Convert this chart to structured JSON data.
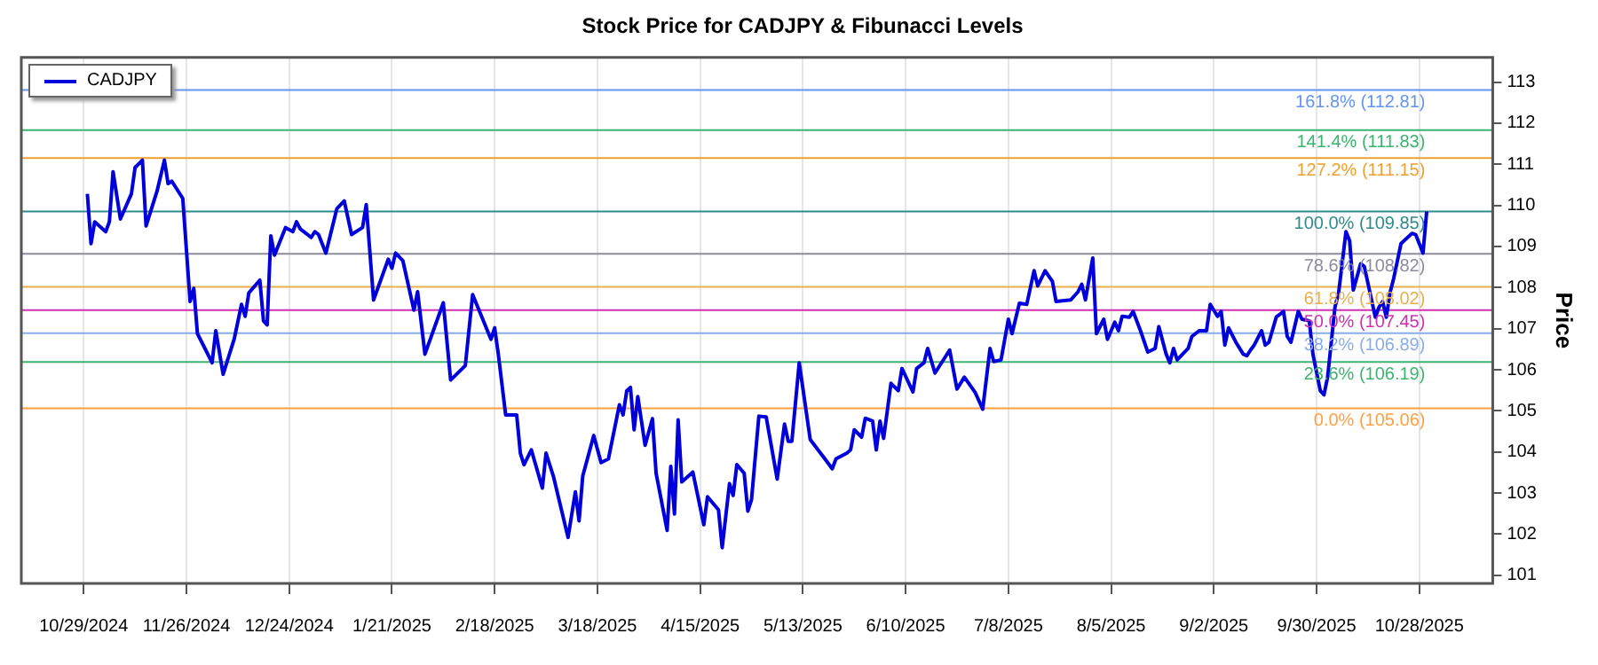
{
  "chart_data": {
    "type": "line",
    "title": "Stock Price for CADJPY & Fibunacci Levels",
    "ylabel": "Price",
    "x": [
      "2024-10-30",
      "2024-10-31",
      "2024-11-01",
      "2024-11-04",
      "2024-11-05",
      "2024-11-06",
      "2024-11-08",
      "2024-11-11",
      "2024-11-12",
      "2024-11-14",
      "2024-11-15",
      "2024-11-18",
      "2024-11-20",
      "2024-11-21",
      "2024-11-22",
      "2024-11-25",
      "2024-11-27",
      "2024-11-28",
      "2024-11-29",
      "2024-12-03",
      "2024-12-04",
      "2024-12-06",
      "2024-12-09",
      "2024-12-11",
      "2024-12-12",
      "2024-12-13",
      "2024-12-16",
      "2024-12-17",
      "2024-12-18",
      "2024-12-19",
      "2024-12-20",
      "2024-12-23",
      "2024-12-25",
      "2024-12-26",
      "2024-12-27",
      "2024-12-30",
      "2024-12-31",
      "2025-01-01",
      "2025-01-03",
      "2025-01-06",
      "2025-01-08",
      "2025-01-10",
      "2025-01-13",
      "2025-01-14",
      "2025-01-16",
      "2025-01-20",
      "2025-01-21",
      "2025-01-22",
      "2025-01-24",
      "2025-01-27",
      "2025-01-28",
      "2025-01-30",
      "2025-02-04",
      "2025-02-06",
      "2025-02-10",
      "2025-02-12",
      "2025-02-17",
      "2025-02-18",
      "2025-02-19",
      "2025-02-21",
      "2025-02-24",
      "2025-02-25",
      "2025-02-26",
      "2025-02-28",
      "2025-03-03",
      "2025-03-04",
      "2025-03-06",
      "2025-03-10",
      "2025-03-12",
      "2025-03-13",
      "2025-03-14",
      "2025-03-17",
      "2025-03-19",
      "2025-03-21",
      "2025-03-24",
      "2025-03-25",
      "2025-03-26",
      "2025-03-27",
      "2025-03-28",
      "2025-03-29",
      "2025-03-31",
      "2025-04-02",
      "2025-04-03",
      "2025-04-06",
      "2025-04-07",
      "2025-04-08",
      "2025-04-09",
      "2025-04-10",
      "2025-04-13",
      "2025-04-16",
      "2025-04-17",
      "2025-04-20",
      "2025-04-21",
      "2025-04-23",
      "2025-04-24",
      "2025-04-25",
      "2025-04-27",
      "2025-04-28",
      "2025-04-29",
      "2025-05-01",
      "2025-05-03",
      "2025-05-06",
      "2025-05-08",
      "2025-05-09",
      "2025-05-10",
      "2025-05-12",
      "2025-05-15",
      "2025-05-19",
      "2025-05-21",
      "2025-05-22",
      "2025-05-25",
      "2025-05-26",
      "2025-05-27",
      "2025-05-29",
      "2025-05-30",
      "2025-06-01",
      "2025-06-02",
      "2025-06-03",
      "2025-06-04",
      "2025-06-06",
      "2025-06-08",
      "2025-06-09",
      "2025-06-12",
      "2025-06-13",
      "2025-06-15",
      "2025-06-16",
      "2025-06-18",
      "2025-06-22",
      "2025-06-24",
      "2025-06-26",
      "2025-06-29",
      "2025-07-01",
      "2025-07-03",
      "2025-07-04",
      "2025-07-06",
      "2025-07-08",
      "2025-07-09",
      "2025-07-11",
      "2025-07-13",
      "2025-07-15",
      "2025-07-16",
      "2025-07-18",
      "2025-07-20",
      "2025-07-21",
      "2025-07-25",
      "2025-07-27",
      "2025-07-28",
      "2025-07-29",
      "2025-07-31",
      "2025-08-01",
      "2025-08-03",
      "2025-08-04",
      "2025-08-06",
      "2025-08-07",
      "2025-08-08",
      "2025-08-10",
      "2025-08-11",
      "2025-08-13",
      "2025-08-15",
      "2025-08-17",
      "2025-08-18",
      "2025-08-20",
      "2025-08-21",
      "2025-08-22",
      "2025-08-23",
      "2025-08-26",
      "2025-08-27",
      "2025-08-29",
      "2025-08-31",
      "2025-09-01",
      "2025-09-03",
      "2025-09-04",
      "2025-09-05",
      "2025-09-06",
      "2025-09-08",
      "2025-09-10",
      "2025-09-11",
      "2025-09-12",
      "2025-09-13",
      "2025-09-15",
      "2025-09-16",
      "2025-09-17",
      "2025-09-19",
      "2025-09-21",
      "2025-09-22",
      "2025-09-23",
      "2025-09-25",
      "2025-09-26",
      "2025-09-28",
      "2025-09-29",
      "2025-10-01",
      "2025-10-02",
      "2025-10-03",
      "2025-10-05",
      "2025-10-06",
      "2025-10-08",
      "2025-10-09",
      "2025-10-10",
      "2025-10-12",
      "2025-10-13",
      "2025-10-16",
      "2025-10-17",
      "2025-10-18",
      "2025-10-19",
      "2025-10-20",
      "2025-10-21",
      "2025-10-23",
      "2025-10-26",
      "2025-10-27",
      "2025-10-29",
      "2025-10-30"
    ],
    "series": [
      {
        "name": "CADJPY",
        "color": "#0000dd",
        "values": [
          110.28,
          109.07,
          109.6,
          109.36,
          109.6,
          110.82,
          109.67,
          110.28,
          110.92,
          111.1,
          109.5,
          110.35,
          111.1,
          110.53,
          110.59,
          110.17,
          107.66,
          107.98,
          106.88,
          106.17,
          106.95,
          105.89,
          106.74,
          107.59,
          107.3,
          107.87,
          108.18,
          107.19,
          107.09,
          109.26,
          108.79,
          109.46,
          109.36,
          109.6,
          109.43,
          109.22,
          109.36,
          109.29,
          108.84,
          109.92,
          110.11,
          109.29,
          109.46,
          110.02,
          107.7,
          108.69,
          108.47,
          108.84,
          108.65,
          107.45,
          107.9,
          106.38,
          107.63,
          105.75,
          106.1,
          107.83,
          106.74,
          107.02,
          106.38,
          104.9,
          104.9,
          103.97,
          103.69,
          104.05,
          103.12,
          103.97,
          103.41,
          101.92,
          103.03,
          102.32,
          103.41,
          104.4,
          103.74,
          103.83,
          105.15,
          104.9,
          105.49,
          105.57,
          104.54,
          105.35,
          104.16,
          104.81,
          103.48,
          102.09,
          103.65,
          102.49,
          104.78,
          103.27,
          103.51,
          102.23,
          102.91,
          102.59,
          101.67,
          103.23,
          102.94,
          103.69,
          103.48,
          102.56,
          102.84,
          104.87,
          104.85,
          103.34,
          104.68,
          104.26,
          104.26,
          106.17,
          104.3,
          103.83,
          103.59,
          103.83,
          103.97,
          104.05,
          104.54,
          104.36,
          104.82,
          104.75,
          104.05,
          104.75,
          104.33,
          105.67,
          105.49,
          106.03,
          105.46,
          106.03,
          106.17,
          106.52,
          105.92,
          106.48,
          105.53,
          105.82,
          105.44,
          105.04,
          106.52,
          106.2,
          106.24,
          107.23,
          106.88,
          107.62,
          107.59,
          108.41,
          108.04,
          108.41,
          108.15,
          107.66,
          107.7,
          107.9,
          108.08,
          107.7,
          108.72,
          106.88,
          107.23,
          106.74,
          107.16,
          106.95,
          107.3,
          107.28,
          107.42,
          106.95,
          106.43,
          106.52,
          107.05,
          106.38,
          106.17,
          106.52,
          106.24,
          106.52,
          106.81,
          106.95,
          106.95,
          107.59,
          107.3,
          107.42,
          106.6,
          107.02,
          106.67,
          106.38,
          106.34,
          106.48,
          106.6,
          106.95,
          106.6,
          106.67,
          107.28,
          107.42,
          106.81,
          106.67,
          107.42,
          107.23,
          107.19,
          106.38,
          105.49,
          105.39,
          105.82,
          107.52,
          107.87,
          109.36,
          109.14,
          107.94,
          108.58,
          108.51,
          107.28,
          107.52,
          107.66,
          107.28,
          107.87,
          108.22,
          109.07,
          109.32,
          109.29,
          108.84,
          109.85
        ]
      }
    ],
    "xlim": [
      "2024-10-12",
      "2025-11-17"
    ],
    "xticks": [
      {
        "value": "2024-10-29",
        "label": "10/29/2024"
      },
      {
        "value": "2024-11-26",
        "label": "11/26/2024"
      },
      {
        "value": "2024-12-24",
        "label": "12/24/2024"
      },
      {
        "value": "2025-01-21",
        "label": "1/21/2025"
      },
      {
        "value": "2025-02-18",
        "label": "2/18/2025"
      },
      {
        "value": "2025-03-18",
        "label": "3/18/2025"
      },
      {
        "value": "2025-04-15",
        "label": "4/15/2025"
      },
      {
        "value": "2025-05-13",
        "label": "5/13/2025"
      },
      {
        "value": "2025-06-10",
        "label": "6/10/2025"
      },
      {
        "value": "2025-07-08",
        "label": "7/8/2025"
      },
      {
        "value": "2025-08-05",
        "label": "8/5/2025"
      },
      {
        "value": "2025-09-02",
        "label": "9/2/2025"
      },
      {
        "value": "2025-09-30",
        "label": "9/30/2025"
      },
      {
        "value": "2025-10-28",
        "label": "10/28/2025"
      }
    ],
    "ylim": [
      100.8,
      113.6
    ],
    "yticks": [
      101,
      102,
      103,
      104,
      105,
      106,
      107,
      108,
      109,
      110,
      111,
      112,
      113
    ],
    "ref_lines": [
      {
        "axis": "y",
        "value": 112.81,
        "label": "161.8% (112.81)",
        "color": "#6495ed"
      },
      {
        "axis": "y",
        "value": 111.83,
        "label": "141.4% (111.83)",
        "color": "#3cb371"
      },
      {
        "axis": "y",
        "value": 111.15,
        "label": "127.2% (111.15)",
        "color": "#f0a030"
      },
      {
        "axis": "y",
        "value": 109.85,
        "label": "100.0% (109.85)",
        "color": "#2e8b8b"
      },
      {
        "axis": "y",
        "value": 108.82,
        "label": "78.6% (108.82)",
        "color": "#8c8c9c"
      },
      {
        "axis": "y",
        "value": 108.02,
        "label": "61.8% (108.02)",
        "color": "#e8b04a"
      },
      {
        "axis": "y",
        "value": 107.45,
        "label": "50.0% (107.45)",
        "color": "#d030b0"
      },
      {
        "axis": "y",
        "value": 106.89,
        "label": "38.2% (106.89)",
        "color": "#87aee8"
      },
      {
        "axis": "y",
        "value": 106.19,
        "label": "23.6% (106.19)",
        "color": "#3cb371"
      },
      {
        "axis": "y",
        "value": 105.06,
        "label": "0.0% (105.06)",
        "color": "#ffa040"
      }
    ],
    "grid": "x",
    "legend": "top left",
    "marker": "none",
    "line_style": "solid"
  }
}
